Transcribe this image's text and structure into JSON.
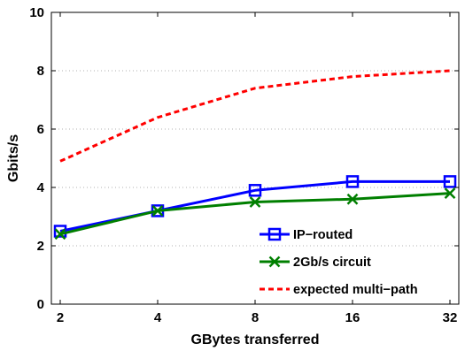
{
  "chart_data": {
    "type": "line",
    "x": [
      2,
      4,
      8,
      16,
      32
    ],
    "xticks": [
      "2",
      "4",
      "8",
      "16",
      "32"
    ],
    "xscale": "log2",
    "xlabel": "GBytes transferred",
    "ylabel": "Gbits/s",
    "ylim": [
      0,
      10
    ],
    "yticks": [
      "0",
      "2",
      "4",
      "6",
      "8",
      "10"
    ],
    "grid": "horizontal dotted",
    "legend_position": "bottom-right",
    "series": [
      {
        "name": "IP−routed",
        "values": [
          2.5,
          3.2,
          3.9,
          4.2,
          4.2
        ],
        "color": "#0000ff",
        "marker": "square",
        "linestyle": "solid"
      },
      {
        "name": "2Gb/s circuit",
        "values": [
          2.4,
          3.2,
          3.5,
          3.6,
          3.8
        ],
        "color": "#007f00",
        "marker": "x",
        "linestyle": "solid"
      },
      {
        "name": "expected multi−path",
        "values": [
          4.9,
          6.4,
          7.4,
          7.8,
          8.0
        ],
        "color": "#ff0000",
        "marker": "none",
        "linestyle": "dashed"
      }
    ]
  }
}
